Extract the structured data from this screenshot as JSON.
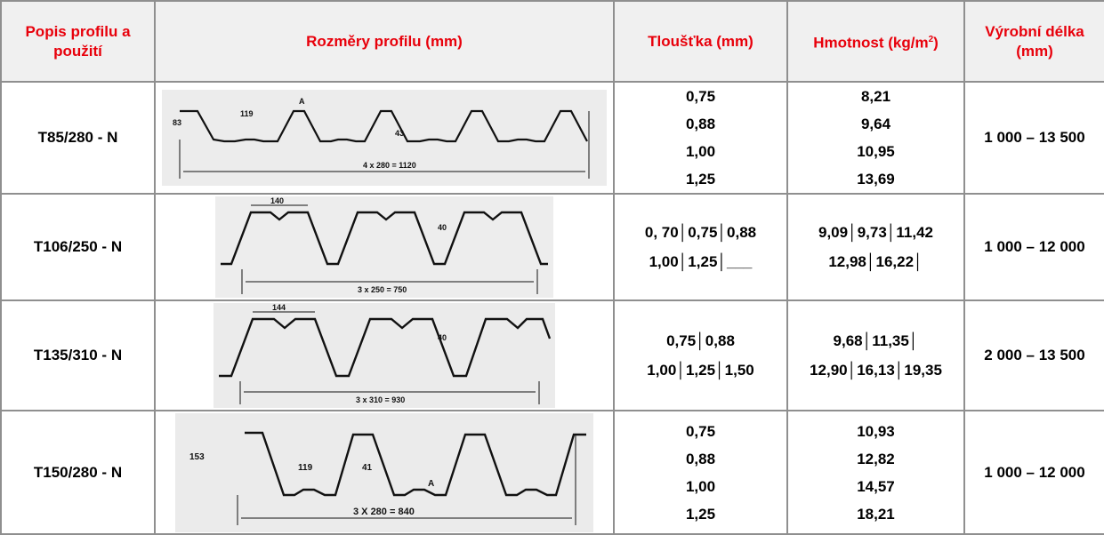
{
  "headers": {
    "profile": "Popis profilu a použití",
    "dimensions": "Rozměry profilu (mm)",
    "thickness": "Tloušťka (mm)",
    "weight_prefix": "Hmotnost (kg/m",
    "weight_sup": "2",
    "weight_suffix": ")",
    "length": "Výrobní délka (mm)"
  },
  "rows": [
    {
      "name": "T85/280 - N",
      "thickness": [
        "0,75",
        "0,88",
        "1,00",
        "1,25"
      ],
      "weight": [
        "8,21",
        "9,64",
        "10,95",
        "13,69"
      ],
      "length": "1 000 – 13 500",
      "drawing": {
        "dims": [
          "83",
          "119",
          "A",
          "43"
        ],
        "span": "4 x 280 = 1120"
      }
    },
    {
      "name": "T106/250 - N",
      "thickness": [
        "0, 70│0,75│0,88",
        "1,00│1,25│___"
      ],
      "weight": [
        "9,09│9,73│11,42",
        "12,98│16,22│"
      ],
      "length": "1 000 – 12 000",
      "drawing": {
        "dims": [
          "140",
          "40"
        ],
        "span": "3 x 250 = 750"
      }
    },
    {
      "name": "T135/310 - N",
      "thickness": [
        "0,75│0,88",
        "1,00│1,25│1,50"
      ],
      "weight": [
        "9,68│11,35│",
        "12,90│16,13│19,35"
      ],
      "length": "2 000 – 13 500",
      "drawing": {
        "dims": [
          "144",
          "40"
        ],
        "span": "3 x 310 = 930"
      }
    },
    {
      "name": "T150/280 - N",
      "thickness": [
        "0,75",
        "0,88",
        "1,00",
        "1,25"
      ],
      "weight": [
        "10,93",
        "12,82",
        "14,57",
        "18,21"
      ],
      "length": "1 000 – 12 000",
      "drawing": {
        "dims": [
          "153",
          "119",
          "41",
          "A"
        ],
        "span": "3 X 280 = 840"
      }
    }
  ]
}
